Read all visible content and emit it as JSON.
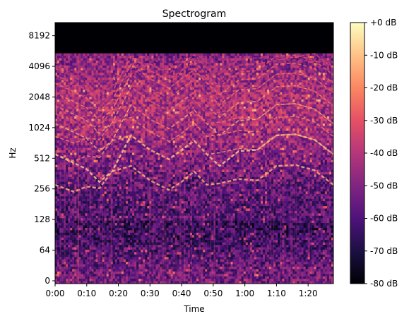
{
  "chart_data": [
    {
      "type": "heatmap",
      "title": "Spectrogram",
      "xlabel": "Time",
      "ylabel": "Hz",
      "x_ticks": [
        {
          "label": "0:00",
          "seconds": 0
        },
        {
          "label": "0:10",
          "seconds": 10
        },
        {
          "label": "0:20",
          "seconds": 20
        },
        {
          "label": "0:30",
          "seconds": 30
        },
        {
          "label": "0:40",
          "seconds": 40
        },
        {
          "label": "0:50",
          "seconds": 50
        },
        {
          "label": "1:00",
          "seconds": 60
        },
        {
          "label": "1:10",
          "seconds": 70
        },
        {
          "label": "1:20",
          "seconds": 80
        }
      ],
      "xlim_seconds": [
        0,
        88
      ],
      "y_scale": "symlog",
      "y_ticks": [
        {
          "label": "0",
          "hz": 0
        },
        {
          "label": "64",
          "hz": 64
        },
        {
          "label": "128",
          "hz": 128
        },
        {
          "label": "256",
          "hz": 256
        },
        {
          "label": "512",
          "hz": 512
        },
        {
          "label": "1024",
          "hz": 1024
        },
        {
          "label": "2048",
          "hz": 2048
        },
        {
          "label": "4096",
          "hz": 4096
        },
        {
          "label": "8192",
          "hz": 8192
        }
      ],
      "ylim_hz": [
        0,
        11025
      ],
      "content_cutoff_hz": 5500,
      "colormap": "magma",
      "colormap_stops": [
        "#000004",
        "#1c1044",
        "#4f127b",
        "#812581",
        "#b5367a",
        "#e55064",
        "#fb8761",
        "#fec287",
        "#fcfdbf"
      ],
      "harmonic_tracks": [
        {
          "seconds": [
            0,
            6,
            10,
            14,
            18,
            24,
            30,
            36,
            40,
            44,
            48,
            52,
            58,
            64,
            70,
            76,
            82,
            88
          ],
          "hz": [
            560,
            460,
            400,
            300,
            380,
            860,
            620,
            500,
            620,
            760,
            560,
            430,
            600,
            620,
            860,
            880,
            780,
            560
          ]
        },
        {
          "seconds": [
            0,
            6,
            10,
            14,
            18,
            24,
            30,
            36,
            40,
            44,
            48,
            52,
            58,
            64,
            70,
            76,
            82,
            88
          ],
          "hz": [
            280,
            240,
            270,
            260,
            380,
            430,
            310,
            250,
            300,
            380,
            280,
            290,
            320,
            310,
            430,
            440,
            390,
            280
          ]
        }
      ],
      "colorbar": {
        "min_db": -80,
        "max_db": 0,
        "tick_labels": [
          "+0 dB",
          "-10 dB",
          "-20 dB",
          "-30 dB",
          "-40 dB",
          "-50 dB",
          "-60 dB",
          "-70 dB",
          "-80 dB"
        ]
      }
    }
  ]
}
